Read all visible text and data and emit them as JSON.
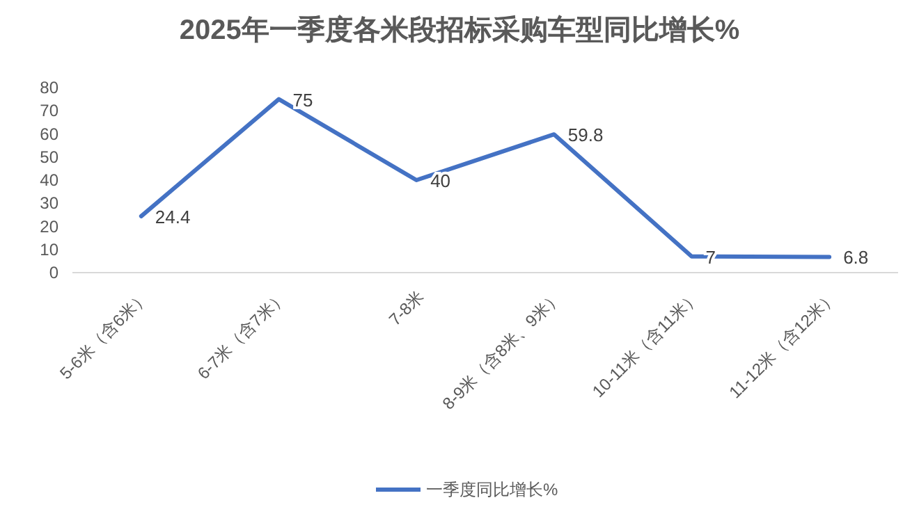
{
  "chart_data": {
    "type": "line",
    "title": "2025年一季度各米段招标采购车型同比增长%",
    "categories": [
      "5-6米（含6米）",
      "6-7米（含7米）",
      "7-8米",
      "8-9米（含8米、9米）",
      "10-11米（含11米）",
      "11-12米（含12米）"
    ],
    "series": [
      {
        "name": "一季度同比增长%",
        "color": "#4472c4",
        "values": [
          24.4,
          75,
          40,
          59.8,
          7,
          6.8
        ]
      }
    ],
    "ylim": [
      0,
      80
    ],
    "yticks": [
      0,
      10,
      20,
      30,
      40,
      50,
      60,
      70,
      80
    ],
    "grid": false,
    "legend": "bottom",
    "data_labels": true,
    "marker": "none",
    "line_style": "solid"
  }
}
